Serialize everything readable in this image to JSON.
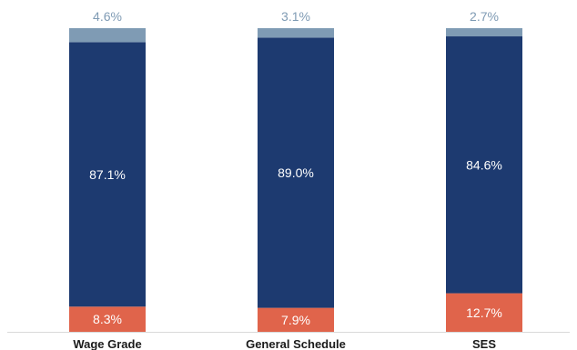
{
  "chart_data": {
    "type": "bar",
    "stacked": true,
    "categories": [
      "Wage Grade",
      "General Schedule",
      "SES"
    ],
    "series": [
      {
        "values": [
          8.3,
          7.9,
          12.7
        ],
        "labels": [
          "8.3%",
          "7.9%",
          "12.7%"
        ],
        "color": "#e0644b"
      },
      {
        "values": [
          87.1,
          89.0,
          84.6
        ],
        "labels": [
          "87.1%",
          "89.0%",
          "84.6%"
        ],
        "color": "#1d3a70"
      },
      {
        "values": [
          4.6,
          3.1,
          2.7
        ],
        "labels": [
          "4.6%",
          "3.1%",
          "2.7%"
        ],
        "color": "#7f9bb4"
      }
    ],
    "ylim": [
      0,
      100
    ],
    "grid": false,
    "legend": "none",
    "baseline_color": "#d9d9d9",
    "top_label_color": "#7f9bb4"
  }
}
